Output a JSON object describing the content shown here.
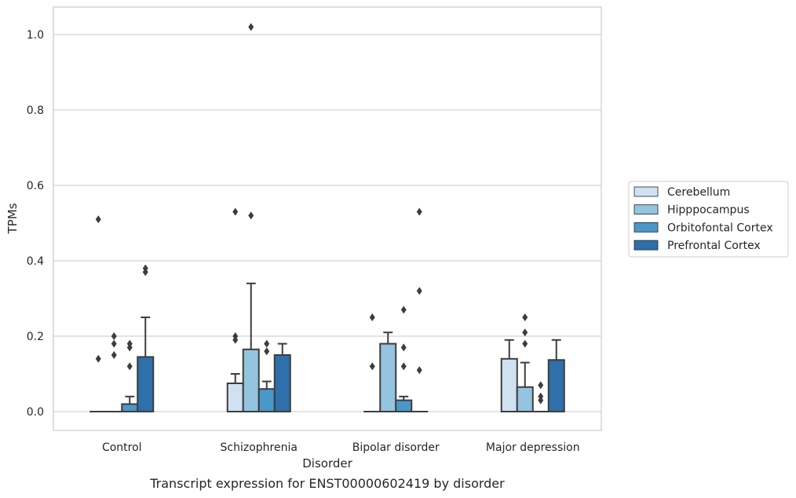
{
  "caption": "Transcript expression for ENST00000602419 by disorder",
  "chart_data": {
    "type": "bar",
    "xlabel": "Disorder",
    "ylabel": "TPMs",
    "ylim": [
      -0.05,
      1.07
    ],
    "yticks": [
      0.0,
      0.2,
      0.4,
      0.6,
      0.8,
      1.0
    ],
    "ytick_labels": [
      "0.0",
      "0.2",
      "0.4",
      "0.6",
      "0.8",
      "1.0"
    ],
    "grid": "horizontal",
    "legend_position": "right",
    "categories": [
      "Control",
      "Schizophrenia",
      "Bipolar disorder",
      "Major depression"
    ],
    "series": [
      {
        "name": "Cerebellum",
        "color": "#d0e1f2",
        "boxes": [
          {
            "q1": 0.0,
            "q3": 0.0,
            "whisker_low": 0.0,
            "whisker_high": 0.0,
            "outliers": [
              0.51,
              0.14
            ]
          },
          {
            "q1": 0.0,
            "q3": 0.075,
            "whisker_low": 0.0,
            "whisker_high": 0.1,
            "outliers": [
              0.53,
              0.2,
              0.19
            ]
          },
          {
            "q1": 0.0,
            "q3": 0.0,
            "whisker_low": 0.0,
            "whisker_high": 0.0,
            "outliers": [
              0.25,
              0.12
            ]
          },
          {
            "q1": 0.0,
            "q3": 0.14,
            "whisker_low": 0.0,
            "whisker_high": 0.19,
            "outliers": []
          }
        ]
      },
      {
        "name": "Hipppocampus",
        "color": "#94c4df",
        "boxes": [
          {
            "q1": 0.0,
            "q3": 0.0,
            "whisker_low": 0.0,
            "whisker_high": 0.0,
            "outliers": [
              0.2,
              0.18,
              0.15
            ]
          },
          {
            "q1": 0.0,
            "q3": 0.165,
            "whisker_low": 0.0,
            "whisker_high": 0.34,
            "outliers": [
              1.02,
              0.52
            ]
          },
          {
            "q1": 0.0,
            "q3": 0.18,
            "whisker_low": 0.0,
            "whisker_high": 0.21,
            "outliers": []
          },
          {
            "q1": 0.0,
            "q3": 0.065,
            "whisker_low": 0.0,
            "whisker_high": 0.13,
            "outliers": [
              0.25,
              0.21,
              0.18
            ]
          }
        ]
      },
      {
        "name": "Orbitofontal Cortex",
        "color": "#4a98c9",
        "boxes": [
          {
            "q1": 0.0,
            "q3": 0.02,
            "whisker_low": 0.0,
            "whisker_high": 0.04,
            "outliers": [
              0.18,
              0.17,
              0.12
            ]
          },
          {
            "q1": 0.0,
            "q3": 0.06,
            "whisker_low": 0.0,
            "whisker_high": 0.08,
            "outliers": [
              0.18,
              0.16
            ]
          },
          {
            "q1": 0.0,
            "q3": 0.03,
            "whisker_low": 0.0,
            "whisker_high": 0.04,
            "outliers": [
              0.27,
              0.17,
              0.12
            ]
          },
          {
            "q1": 0.0,
            "q3": 0.0,
            "whisker_low": 0.0,
            "whisker_high": 0.0,
            "outliers": [
              0.07,
              0.04,
              0.03
            ]
          }
        ]
      },
      {
        "name": "Prefrontal Cortex",
        "color": "#2e6fac",
        "boxes": [
          {
            "q1": 0.0,
            "q3": 0.145,
            "whisker_low": 0.0,
            "whisker_high": 0.25,
            "outliers": [
              0.38,
              0.37
            ]
          },
          {
            "q1": 0.0,
            "q3": 0.15,
            "whisker_low": 0.0,
            "whisker_high": 0.18,
            "outliers": []
          },
          {
            "q1": 0.0,
            "q3": 0.0,
            "whisker_low": 0.0,
            "whisker_high": 0.0,
            "outliers": [
              0.53,
              0.32,
              0.11
            ]
          },
          {
            "q1": 0.0,
            "q3": 0.137,
            "whisker_low": 0.0,
            "whisker_high": 0.19,
            "outliers": []
          }
        ]
      }
    ]
  }
}
